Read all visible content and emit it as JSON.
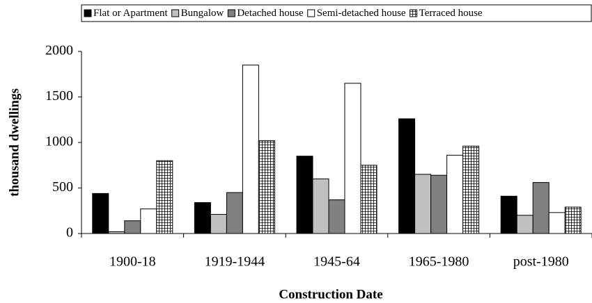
{
  "chart_data": {
    "type": "bar",
    "x_label": "Construction Date",
    "y_label": "thousand dwellings",
    "categories": [
      "1900-18",
      "1919-1944",
      "1945-64",
      "1965-1980",
      "post-1980"
    ],
    "series": [
      {
        "name": "Flat or Apartment",
        "color": "#000000",
        "values": [
          440,
          340,
          850,
          1260,
          410
        ]
      },
      {
        "name": "Bungalow",
        "color": "#c0c0c0",
        "values": [
          20,
          210,
          600,
          650,
          200
        ]
      },
      {
        "name": "Detached house",
        "color": "#808080",
        "values": [
          140,
          450,
          370,
          640,
          560
        ]
      },
      {
        "name": "Semi-detached house",
        "color": "#ffffff",
        "values": [
          270,
          1850,
          1650,
          860,
          230
        ]
      },
      {
        "name": "Terraced house",
        "color": "#ffffff",
        "pattern": "grid",
        "values": [
          800,
          1020,
          750,
          960,
          290
        ]
      }
    ],
    "ylim": [
      0,
      2000
    ],
    "yticks": [
      0,
      500,
      1000,
      1500,
      2000
    ],
    "grid": false,
    "legend": "top"
  }
}
